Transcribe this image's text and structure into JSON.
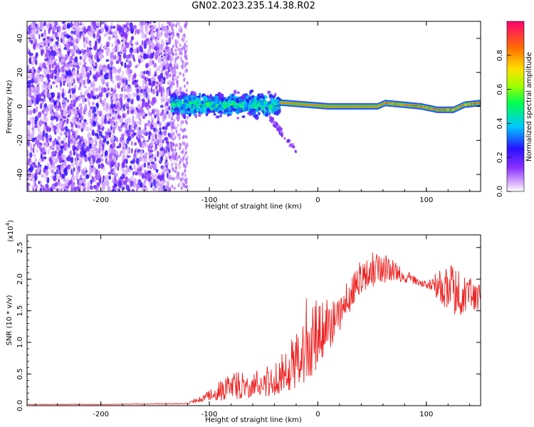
{
  "title": "GN02.2023.235.14.38.R02",
  "chart_data": [
    {
      "type": "heatmap",
      "xlabel": "Height of straight line (km)",
      "ylabel": "Frequency (Hz)",
      "xlim": [
        -268,
        150
      ],
      "ylim": [
        -50,
        50
      ],
      "x_ticks": [
        -200,
        -100,
        0,
        100
      ],
      "x_tick_labels": [
        "-200",
        "-100",
        "0",
        "100"
      ],
      "y_ticks": [
        -40,
        -20,
        0,
        20,
        40
      ],
      "y_tick_labels": [
        "-40",
        "-20",
        "0",
        "20",
        "40"
      ],
      "grid": false,
      "colorbar": {
        "label": "Normalized spectral amplitude",
        "range": [
          0,
          1
        ],
        "ticks": [
          0,
          0.2,
          0.4,
          0.6,
          0.8
        ],
        "tick_labels": [
          "0.0",
          "0.2",
          "0.4",
          "0.6",
          "0.8"
        ],
        "colors": [
          "#ffffff",
          "#b070ff",
          "#2a00ff",
          "#00d8ff",
          "#00ff40",
          "#ffe000",
          "#ff7000",
          "#ff0060"
        ]
      },
      "regions": [
        {
          "x": [
            -268,
            -135
          ],
          "freq_spread": 50,
          "amplitude": 0.2,
          "description": "noise"
        },
        {
          "x": [
            -135,
            -120
          ],
          "freq_spread": 50,
          "amplitude": 0.08
        },
        {
          "x": [
            -135,
            -35
          ],
          "freq_center": 1,
          "freq_spread": 9,
          "amplitude": 0.45
        },
        {
          "x": [
            -35,
            150
          ],
          "freq_center": 1,
          "freq_spread": 1.5,
          "amplitude": 0.8
        }
      ],
      "signal_track": [
        {
          "x": -30,
          "f": 2
        },
        {
          "x": -10,
          "f": 1
        },
        {
          "x": 10,
          "f": 0
        },
        {
          "x": 55,
          "f": 0
        },
        {
          "x": 62,
          "f": 2
        },
        {
          "x": 95,
          "f": 0
        },
        {
          "x": 110,
          "f": -2
        },
        {
          "x": 125,
          "f": -2
        },
        {
          "x": 135,
          "f": 1
        },
        {
          "x": 150,
          "f": 2
        }
      ]
    },
    {
      "type": "line",
      "xlabel": "Height of straight line (km)",
      "ylabel": "SNR (10 * v/v)",
      "y_multiplier": "(x10",
      "y_multiplier_exp": "4",
      "y_multiplier_close": ")",
      "xlim": [
        -268,
        150
      ],
      "ylim": [
        0,
        2.7
      ],
      "x_ticks": [
        -200,
        -100,
        0,
        100
      ],
      "x_tick_labels": [
        "-200",
        "-100",
        "0",
        "100"
      ],
      "y_ticks": [
        0,
        0.5,
        1.0,
        1.5,
        2.0,
        2.5
      ],
      "y_tick_labels": [
        "0.0",
        "0.5",
        "1.0",
        "1.5",
        "2.0",
        "2.5"
      ],
      "color": "#ee2222",
      "series": [
        {
          "x": [
            -268,
            -200,
            -120,
            -100,
            -80,
            -60,
            -40,
            -20,
            -10,
            0,
            20,
            40,
            55,
            70,
            85,
            100,
            110,
            120,
            130,
            140,
            150
          ],
          "values": [
            0.02,
            0.02,
            0.03,
            0.15,
            0.25,
            0.3,
            0.35,
            0.6,
            0.9,
            1.05,
            1.4,
            2.0,
            2.15,
            2.1,
            2.0,
            1.9,
            1.85,
            1.75,
            1.7,
            1.75,
            1.65
          ],
          "spread": [
            0.005,
            0.005,
            0.01,
            0.12,
            0.3,
            0.3,
            0.35,
            0.6,
            1.0,
            0.8,
            0.4,
            0.35,
            0.4,
            0.25,
            0.1,
            0.08,
            0.3,
            0.55,
            0.5,
            0.35,
            0.3
          ]
        }
      ]
    }
  ]
}
